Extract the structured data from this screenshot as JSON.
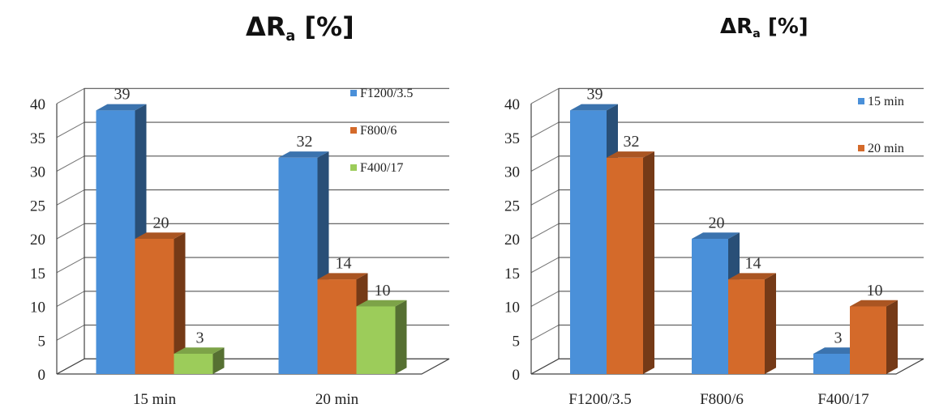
{
  "chart_data": [
    {
      "type": "bar",
      "title": "ΔR",
      "title_subscript": "a",
      "title_suffix": "[%]",
      "categories": [
        "15 min",
        "20 min"
      ],
      "series": [
        {
          "name": "F1200/3.5",
          "values": [
            39,
            32
          ],
          "color": "#4a90d9"
        },
        {
          "name": "F800/6",
          "values": [
            20,
            14
          ],
          "color": "#d46a2a"
        },
        {
          "name": "F400/17",
          "values": [
            3,
            10
          ],
          "color": "#9ccc5a"
        }
      ],
      "ylim": [
        0,
        40
      ],
      "yticks": [
        0,
        5,
        10,
        15,
        20,
        25,
        30,
        35,
        40
      ],
      "grid": true,
      "legend": "top-right",
      "style": "3d-clustered-column"
    },
    {
      "type": "bar",
      "title": "ΔR",
      "title_subscript": "a",
      "title_suffix": "[%]",
      "categories": [
        "F1200/3.5",
        "F800/6",
        "F400/17"
      ],
      "series": [
        {
          "name": "15 min",
          "values": [
            39,
            20,
            3
          ],
          "color": "#4a90d9"
        },
        {
          "name": "20 min",
          "values": [
            32,
            14,
            10
          ],
          "color": "#d46a2a"
        }
      ],
      "ylim": [
        0,
        40
      ],
      "yticks": [
        0,
        5,
        10,
        15,
        20,
        25,
        30,
        35,
        40
      ],
      "grid": true,
      "legend": "top-right",
      "style": "3d-clustered-column"
    }
  ]
}
